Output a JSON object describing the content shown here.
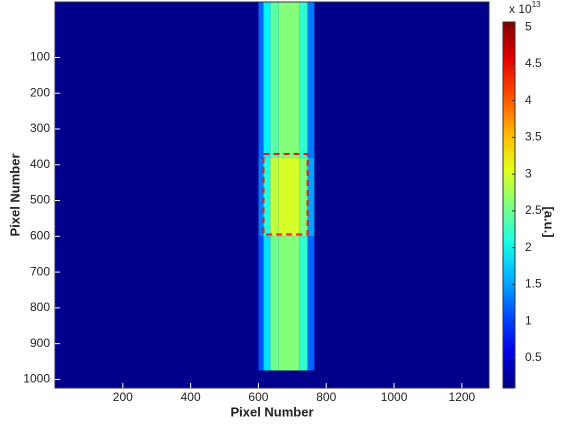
{
  "chart_data": {
    "type": "heatmap",
    "xlabel": "Pixel Number",
    "ylabel": "Pixel Number",
    "xlim": [
      0,
      1280
    ],
    "ylim": [
      -55,
      1024
    ],
    "y_reversed": true,
    "xticks": [
      200,
      400,
      600,
      800,
      1000,
      1200
    ],
    "yticks": [
      100,
      200,
      300,
      400,
      500,
      600,
      700,
      800,
      900,
      1000
    ],
    "background_value": 0.15,
    "x_edges": [
      600,
      615,
      635,
      660,
      720,
      745,
      765
    ],
    "y_edges": [
      -55,
      380,
      600,
      975
    ],
    "z": [
      [
        1.2,
        1.9,
        2.4,
        2.6,
        2.2,
        1.3
      ],
      [
        1.3,
        2.1,
        2.9,
        3.0,
        2.6,
        1.5
      ],
      [
        1.1,
        1.8,
        2.5,
        2.6,
        2.2,
        1.2
      ]
    ],
    "colormap": "jet",
    "clim": [
      0.09,
      5.07
    ],
    "colorbar_ticks": [
      0.5,
      1,
      1.5,
      2,
      2.5,
      3,
      3.5,
      4,
      4.5,
      5
    ],
    "colorbar_exponent": {
      "base": "x 10",
      "power": "13"
    },
    "colorbar_label": "[a.u.]",
    "highlight_box": {
      "x": [
        615,
        745
      ],
      "y": [
        370,
        595
      ],
      "color": "#e02020"
    }
  }
}
